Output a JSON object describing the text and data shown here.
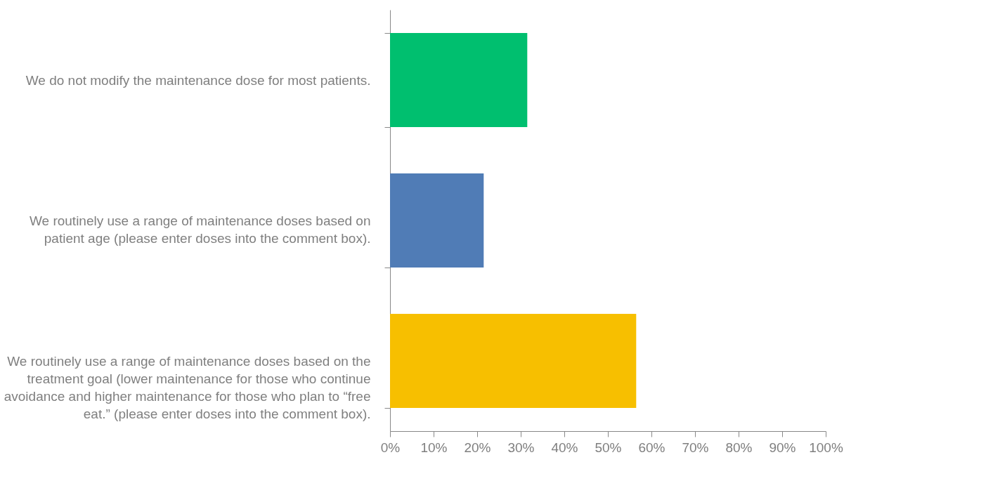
{
  "chart_data": {
    "type": "bar",
    "orientation": "horizontal",
    "categories": [
      "We do not modify the maintenance dose for most patients.",
      "We routinely use a range of maintenance doses based on patient age (please enter doses into the comment box).",
      "We routinely use a range of maintenance doses based on the treatment goal (lower maintenance for those who continue avoidance and higher maintenance for those who plan to “free eat.” (please enter doses into the comment box)."
    ],
    "values": [
      31.5,
      21.5,
      56.5
    ],
    "colors": [
      "#00bf6f",
      "#507cb6",
      "#f7bf00"
    ],
    "xlim": [
      0,
      100
    ],
    "xticks": [
      {
        "value": 0,
        "label": "0%"
      },
      {
        "value": 10,
        "label": "10%"
      },
      {
        "value": 20,
        "label": "20%"
      },
      {
        "value": 30,
        "label": "30%"
      },
      {
        "value": 40,
        "label": "40%"
      },
      {
        "value": 50,
        "label": "50%"
      },
      {
        "value": 60,
        "label": "60%"
      },
      {
        "value": 70,
        "label": "70%"
      },
      {
        "value": 80,
        "label": "80%"
      },
      {
        "value": 90,
        "label": "90%"
      },
      {
        "value": 100,
        "label": "100%"
      }
    ],
    "grid": false,
    "legend": false
  }
}
